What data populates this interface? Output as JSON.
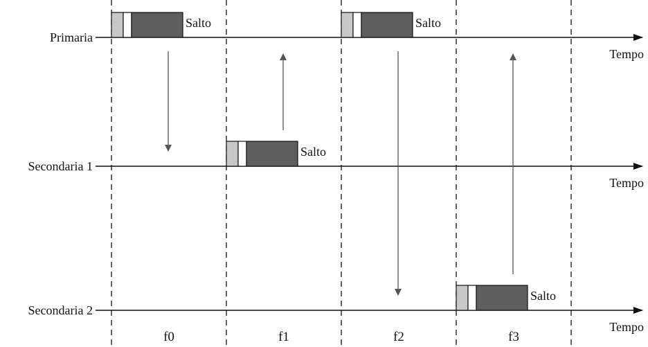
{
  "rows": [
    {
      "label": "Primaria",
      "axis_label": "Tempo"
    },
    {
      "label": "Secondaria 1",
      "axis_label": "Tempo"
    },
    {
      "label": "Secondaria 2",
      "axis_label": "Tempo"
    }
  ],
  "frames": [
    "f0",
    "f1",
    "f2",
    "f3"
  ],
  "blocks": [
    {
      "row": 0,
      "frame": 0,
      "label": "Salto"
    },
    {
      "row": 1,
      "frame": 1,
      "label": "Salto"
    },
    {
      "row": 0,
      "frame": 2,
      "label": "Salto"
    },
    {
      "row": 2,
      "frame": 3,
      "label": "Salto"
    }
  ],
  "transfers": [
    {
      "frame": 0,
      "from_row": 0,
      "to_row": 1
    },
    {
      "frame": 1,
      "from_row": 1,
      "to_row": 0
    },
    {
      "frame": 2,
      "from_row": 0,
      "to_row": 2
    },
    {
      "frame": 3,
      "from_row": 2,
      "to_row": 0
    }
  ],
  "colors": {
    "line": "#111111",
    "block_light": "#c8c8c8",
    "block_white": "#ffffff",
    "block_dark": "#5e5e5e",
    "dashed": "#111111",
    "arrow": "#555555"
  }
}
